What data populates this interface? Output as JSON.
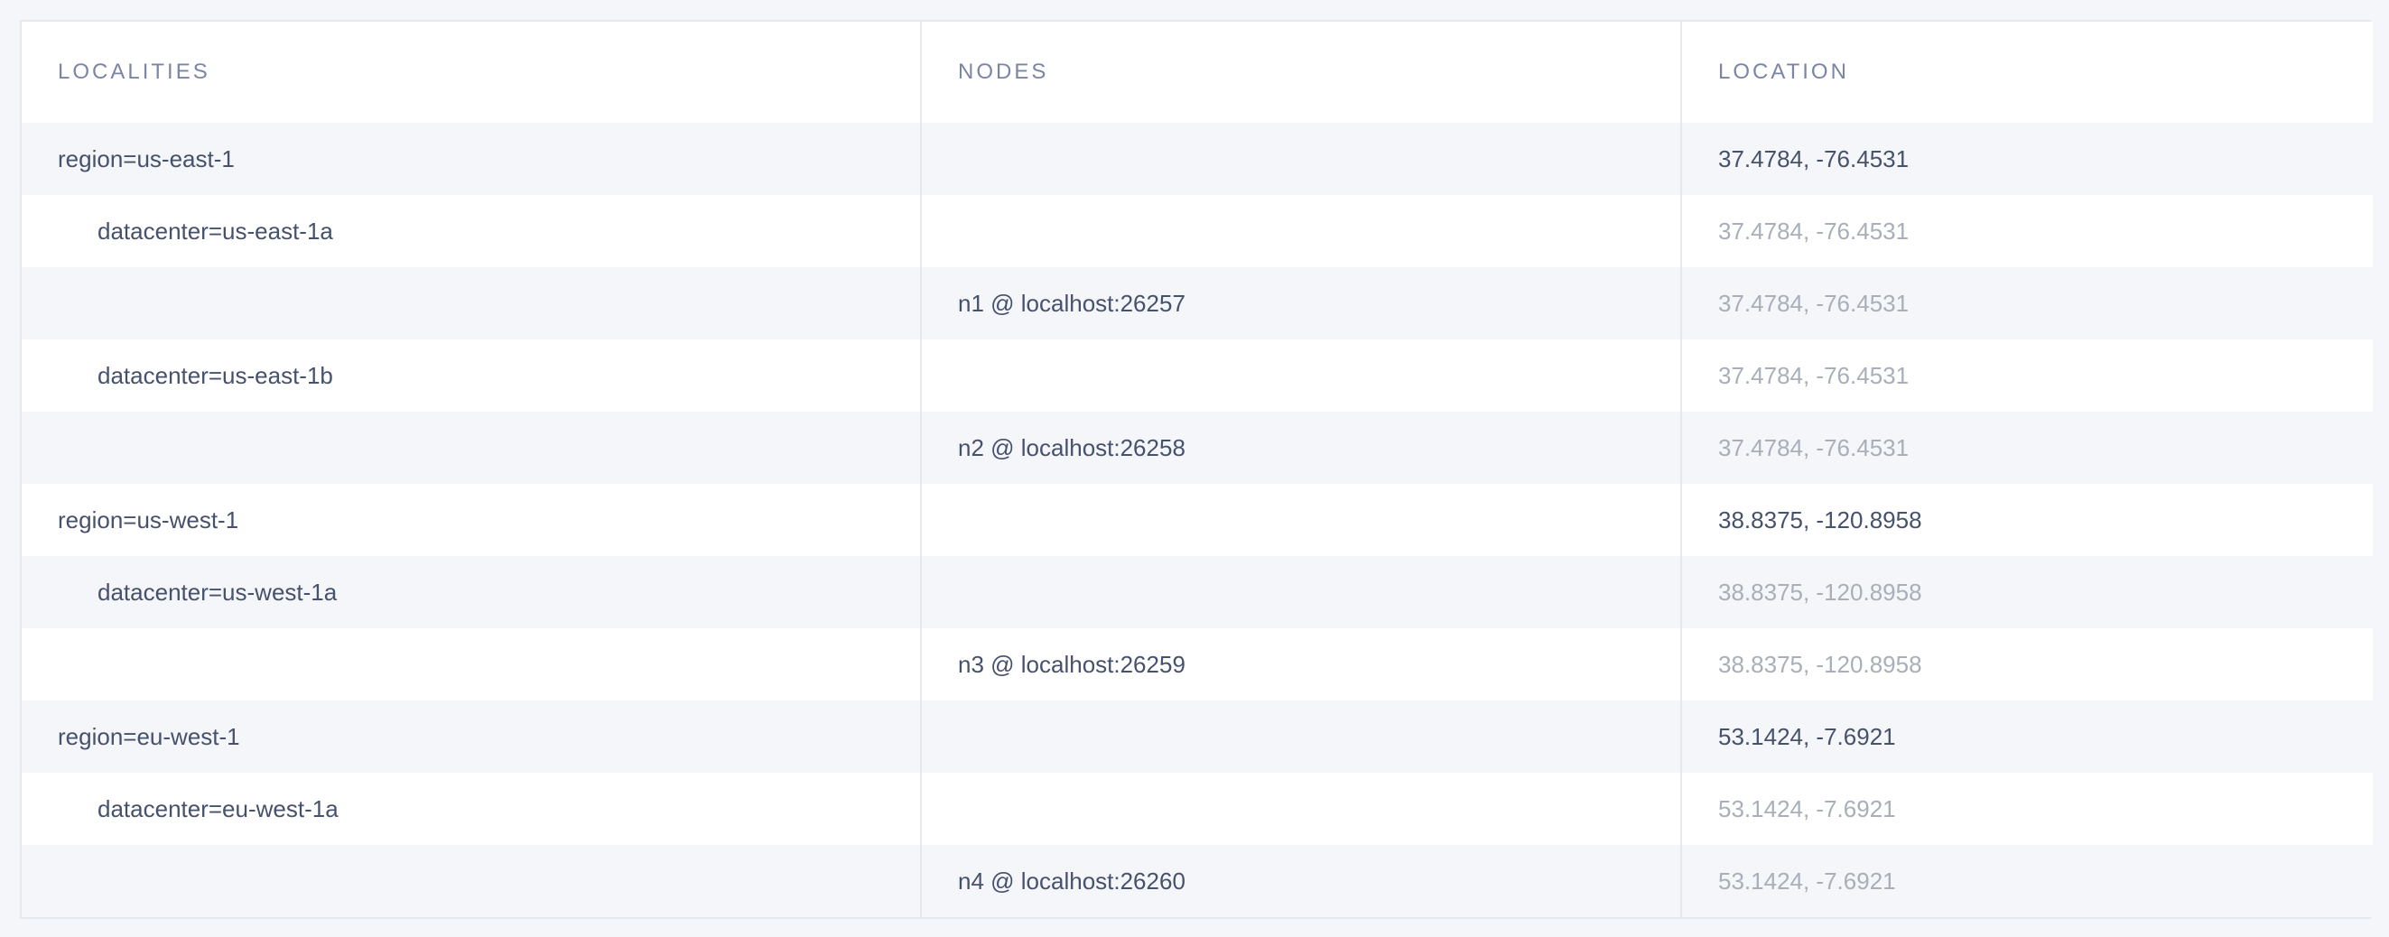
{
  "colors": {
    "bg": "#f4f6fa",
    "card_bg": "#ffffff",
    "stripe": "#f4f6fa",
    "border": "#e4e9ef",
    "header_text": "#7b85a6",
    "body_text": "#46516b",
    "muted_text": "#a9aeb9"
  },
  "table": {
    "columns": [
      {
        "key": "localities",
        "label": "LOCALITIES"
      },
      {
        "key": "nodes",
        "label": "NODES"
      },
      {
        "key": "location",
        "label": "LOCATION"
      }
    ],
    "rows": [
      {
        "locality": "region=us-east-1",
        "indent": 0,
        "node": "",
        "location": "37.4784, -76.4531",
        "location_muted": false
      },
      {
        "locality": "datacenter=us-east-1a",
        "indent": 1,
        "node": "",
        "location": "37.4784, -76.4531",
        "location_muted": true
      },
      {
        "locality": "",
        "indent": 0,
        "node": "n1 @ localhost:26257",
        "location": "37.4784, -76.4531",
        "location_muted": true
      },
      {
        "locality": "datacenter=us-east-1b",
        "indent": 1,
        "node": "",
        "location": "37.4784, -76.4531",
        "location_muted": true
      },
      {
        "locality": "",
        "indent": 0,
        "node": "n2 @ localhost:26258",
        "location": "37.4784, -76.4531",
        "location_muted": true
      },
      {
        "locality": "region=us-west-1",
        "indent": 0,
        "node": "",
        "location": "38.8375, -120.8958",
        "location_muted": false
      },
      {
        "locality": "datacenter=us-west-1a",
        "indent": 1,
        "node": "",
        "location": "38.8375, -120.8958",
        "location_muted": true
      },
      {
        "locality": "",
        "indent": 0,
        "node": "n3 @ localhost:26259",
        "location": "38.8375, -120.8958",
        "location_muted": true
      },
      {
        "locality": "region=eu-west-1",
        "indent": 0,
        "node": "",
        "location": "53.1424, -7.6921",
        "location_muted": false
      },
      {
        "locality": "datacenter=eu-west-1a",
        "indent": 1,
        "node": "",
        "location": "53.1424, -7.6921",
        "location_muted": true
      },
      {
        "locality": "",
        "indent": 0,
        "node": "n4 @ localhost:26260",
        "location": "53.1424, -7.6921",
        "location_muted": true
      }
    ]
  }
}
